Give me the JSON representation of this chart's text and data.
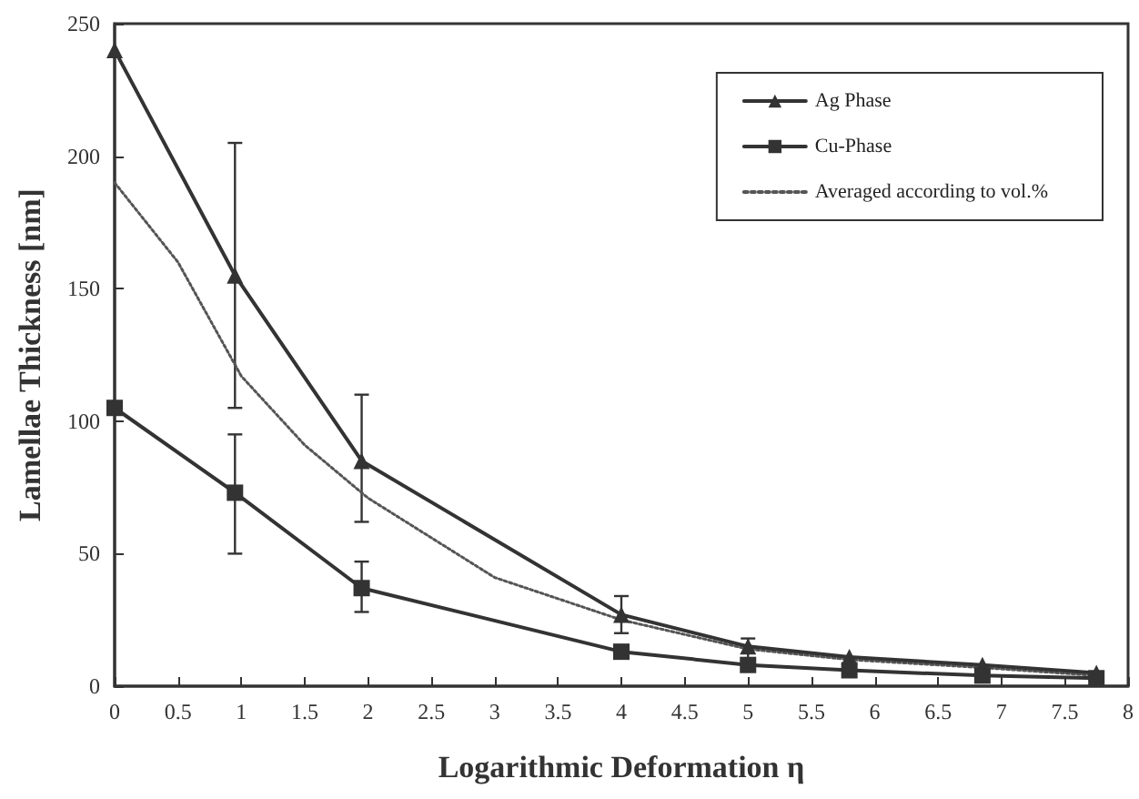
{
  "chart_data": {
    "type": "line",
    "xlabel": "Logarithmic Deformation η",
    "ylabel": "Lamellae Thickness [nm]",
    "xlim": [
      0,
      8
    ],
    "xticks": [
      0,
      0.5,
      1,
      1.5,
      2,
      2.5,
      3,
      3.5,
      4,
      4.5,
      5,
      5.5,
      6,
      6.5,
      7,
      7.5,
      8
    ],
    "ylim": [
      0,
      250
    ],
    "yticks": [
      0,
      50,
      100,
      150,
      200,
      250
    ],
    "grid": false,
    "legend": "top right",
    "series": [
      {
        "name": "Ag Phase",
        "color": "#333333",
        "marker": "triangle",
        "line_style": "solid",
        "x": [
          0,
          0.95,
          1.95,
          4,
          5,
          5.8,
          6.85,
          7.75
        ],
        "values": [
          240,
          155,
          85,
          27,
          15,
          11,
          8,
          5
        ],
        "errors": [
          null,
          [
            105,
            205
          ],
          [
            62,
            110
          ],
          [
            20,
            34
          ],
          [
            10,
            18
          ],
          null,
          null,
          null
        ]
      },
      {
        "name": "Cu-Phase",
        "color": "#333333",
        "marker": "square",
        "line_style": "solid",
        "x": [
          0,
          0.95,
          1.95,
          4,
          5,
          5.8,
          6.85,
          7.75
        ],
        "values": [
          105,
          73,
          37,
          13,
          8,
          6,
          4,
          3
        ],
        "errors": [
          null,
          [
            50,
            95
          ],
          [
            28,
            47
          ],
          null,
          null,
          null,
          null,
          null
        ]
      },
      {
        "name": "Averaged according to vol.%",
        "color": "#555555",
        "marker": "none",
        "line_style": "dotted",
        "x": [
          0,
          0.5,
          1,
          1.5,
          2,
          3,
          4,
          5,
          5.8,
          6.85,
          7.75
        ],
        "values": [
          190,
          160,
          117,
          91,
          71,
          41,
          25,
          14,
          10,
          7,
          4
        ]
      }
    ]
  }
}
